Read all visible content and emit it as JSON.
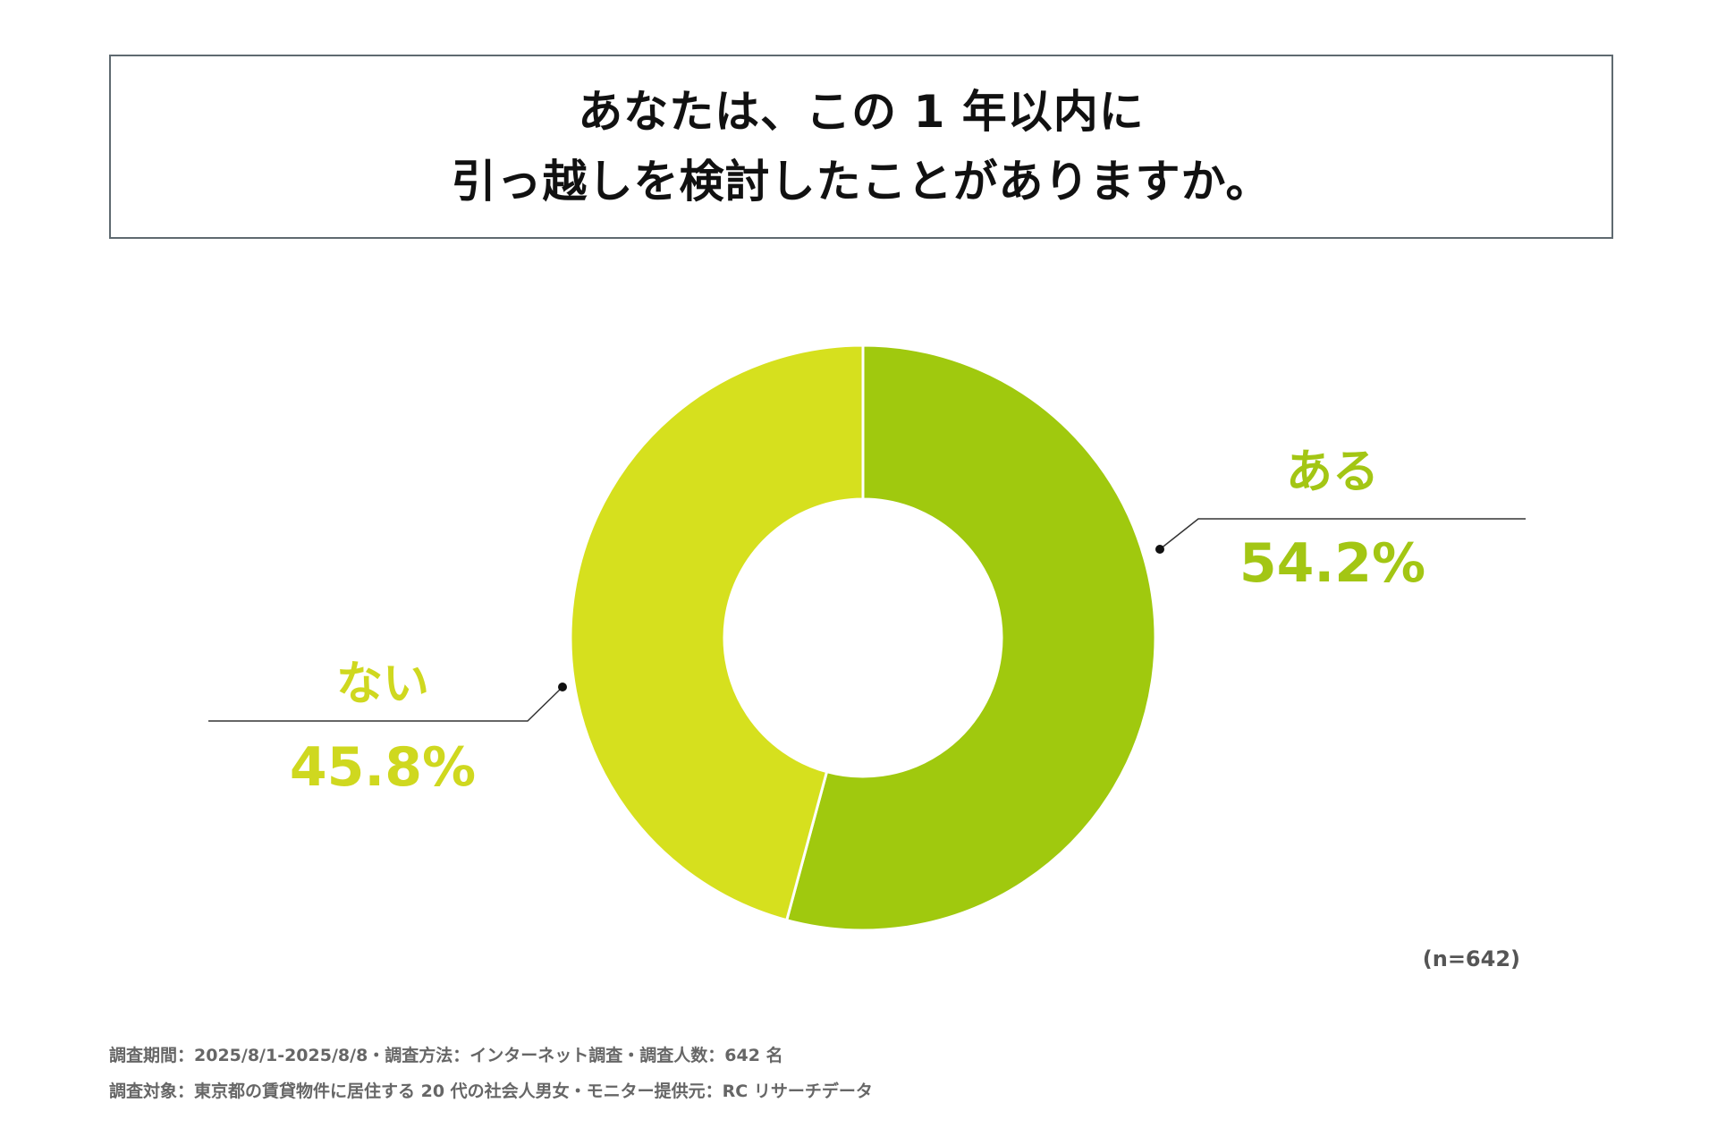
{
  "title": {
    "line1": "あなたは、この 1 年以内に",
    "line2": "引っ越しを検討したことがありますか。"
  },
  "colors": {
    "aru": "#a0c90e",
    "nai": "#d6e01e",
    "aru_text": "#a3c614",
    "nai_text": "#cfd81f",
    "border": "#5f6a70"
  },
  "chart_data": {
    "type": "pie",
    "donut": true,
    "slices": [
      {
        "label": "ある",
        "value": 54.2,
        "value_label": "54.2%",
        "color": "#a0c90e"
      },
      {
        "label": "ない",
        "value": 45.8,
        "value_label": "45.8%",
        "color": "#d6e01e"
      }
    ],
    "sample_size": "(n=642)"
  },
  "footnotes": {
    "line1": "調査期間：2025/8/1-2025/8/8・調査方法：インターネット調査・調査人数：642 名",
    "line2": "調査対象：東京都の賃貸物件に居住する 20 代の社会人男女・モニター提供元：RC リサーチデータ"
  }
}
